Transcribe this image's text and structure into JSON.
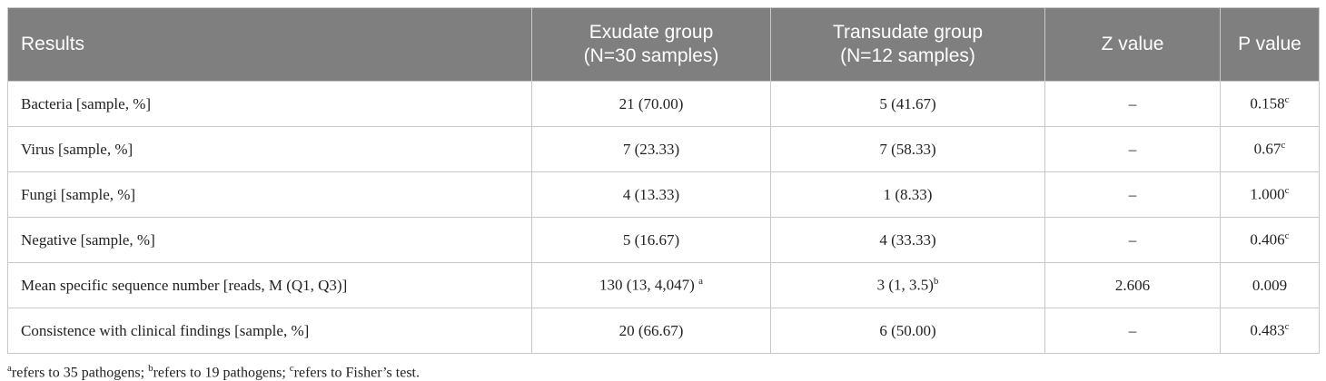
{
  "table": {
    "header": [
      [
        "Results"
      ],
      [
        "Exudate group",
        "(N=30 samples)"
      ],
      [
        "Transudate group",
        "(N=12 samples)"
      ],
      [
        "Z value"
      ],
      [
        "P value"
      ]
    ],
    "rows": [
      [
        "Bacteria [sample, %]",
        "21 (70.00)",
        "5 (41.67)",
        "–",
        {
          "text": "0.158",
          "sup": "c"
        }
      ],
      [
        "Virus [sample, %]",
        "7 (23.33)",
        "7 (58.33)",
        "–",
        {
          "text": "0.67",
          "sup": "c"
        }
      ],
      [
        "Fungi [sample, %]",
        "4 (13.33)",
        "1 (8.33)",
        "–",
        {
          "text": "1.000",
          "sup": "c"
        }
      ],
      [
        "Negative [sample, %]",
        "5 (16.67)",
        "4 (33.33)",
        "–",
        {
          "text": "0.406",
          "sup": "c"
        }
      ],
      [
        "Mean specific sequence number [reads, M (Q1, Q3)]",
        {
          "text": "130 (13, 4,047)",
          "sup": "a"
        },
        {
          "text": "3 (1, 3.5)",
          "sup": "b"
        },
        "2.606",
        "0.009"
      ],
      [
        "Consistence with clinical findings [sample, %]",
        "20 (66.67)",
        "6 (50.00)",
        "–",
        {
          "text": "0.483",
          "sup": "c"
        }
      ]
    ]
  },
  "footnote": [
    {
      "sup": "a",
      "text": "refers to 35 pathogens; "
    },
    {
      "sup": "b",
      "text": "refers to 19 pathogens; "
    },
    {
      "sup": "c",
      "text": "refers to Fisher’s test."
    }
  ]
}
